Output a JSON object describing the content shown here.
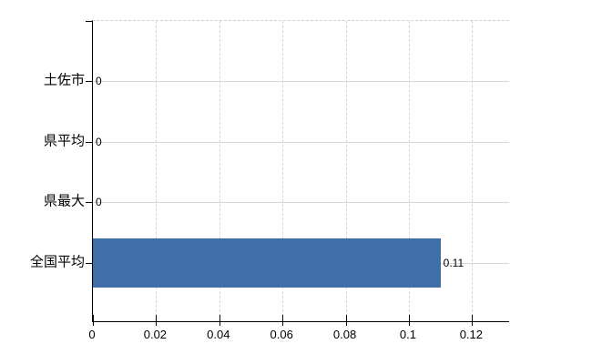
{
  "chart_data": {
    "type": "bar",
    "orientation": "horizontal",
    "title": "",
    "categories": [
      "土佐市",
      "県平均",
      "県最大",
      "全国平均"
    ],
    "values": [
      0,
      0,
      0,
      0.11
    ],
    "value_labels": [
      "0",
      "0",
      "0",
      "0.11"
    ],
    "x_ticks": [
      0,
      0.02,
      0.04,
      0.06,
      0.08,
      0.1,
      0.12
    ],
    "x_tick_labels": [
      "0",
      "0.02",
      "0.04",
      "0.06",
      "0.08",
      "0.1",
      "0.12"
    ],
    "xlim": [
      0,
      0.132
    ],
    "ylabel": "",
    "xlabel": "",
    "grid": true,
    "legend": false,
    "colors": {
      "bar": "#3f6ea8",
      "axis": "#000000",
      "horizontal_gridline": "#d2d9d2",
      "vertical_gridline": "#d8d2d8",
      "background": "#ffffff",
      "text": "#000000"
    }
  }
}
